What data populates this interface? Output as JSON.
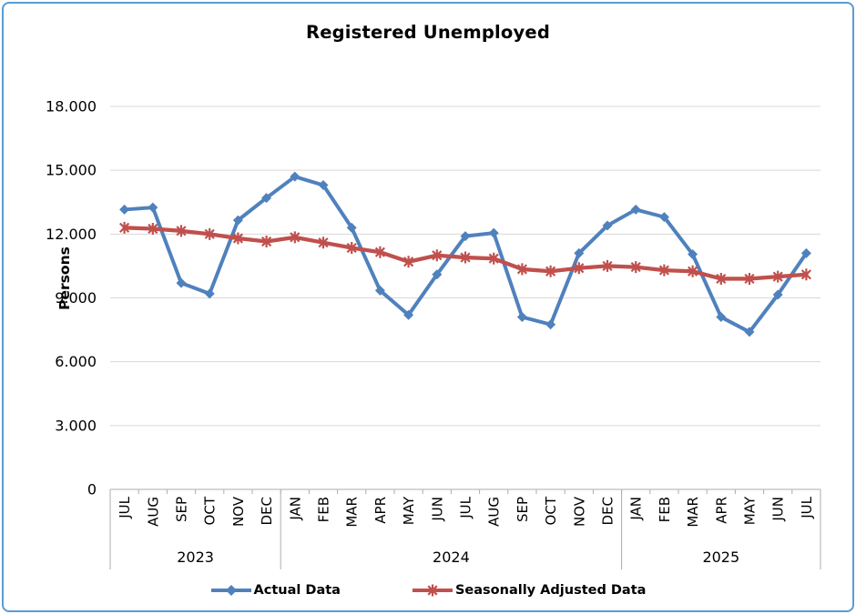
{
  "frame": {
    "border_color": "#5B9BD5",
    "background": "#FFFFFF"
  },
  "chart_data": {
    "type": "line",
    "title": "Registered Unemployed",
    "ylabel": "Persons",
    "ylim": [
      0,
      18000
    ],
    "grid": true,
    "legend_position": "bottom",
    "y_ticks": [
      {
        "value": 0,
        "label": "0"
      },
      {
        "value": 3000,
        "label": "3.000"
      },
      {
        "value": 6000,
        "label": "6.000"
      },
      {
        "value": 9000,
        "label": "9.000"
      },
      {
        "value": 12000,
        "label": "12.000"
      },
      {
        "value": 15000,
        "label": "15.000"
      },
      {
        "value": 18000,
        "label": "18.000"
      }
    ],
    "categories": [
      "JUL",
      "AUG",
      "SEP",
      "OCT",
      "NOV",
      "DEC",
      "JAN",
      "FEB",
      "MAR",
      "APR",
      "MAY",
      "JUN",
      "JUL",
      "AUG",
      "SEP",
      "OCT",
      "NOV",
      "DEC",
      "JAN",
      "FEB",
      "MAR",
      "APR",
      "MAY",
      "JUN",
      "JUL"
    ],
    "year_groups": [
      {
        "label": "2023",
        "start": 0,
        "end": 5
      },
      {
        "label": "2024",
        "start": 6,
        "end": 17
      },
      {
        "label": "2025",
        "start": 18,
        "end": 24
      }
    ],
    "series": [
      {
        "name": "Actual Data",
        "color": "#4F81BD",
        "marker": "diamond",
        "values": [
          13150,
          13250,
          9700,
          9200,
          12650,
          13700,
          14700,
          14300,
          12300,
          9350,
          8200,
          10100,
          11900,
          12050,
          8100,
          7750,
          11100,
          12400,
          13150,
          12800,
          11050,
          8100,
          7400,
          9150,
          11100
        ]
      },
      {
        "name": "Seasonally Adjusted Data",
        "color": "#C0504D",
        "marker": "star",
        "values": [
          12300,
          12250,
          12150,
          12000,
          11800,
          11650,
          11850,
          11600,
          11350,
          11150,
          10700,
          11000,
          10900,
          10850,
          10350,
          10250,
          10400,
          10500,
          10450,
          10300,
          10250,
          9900,
          9900,
          10000,
          10100
        ]
      }
    ],
    "axis_color": "#ADADAD",
    "gridline_color": "#D8D8D8"
  }
}
